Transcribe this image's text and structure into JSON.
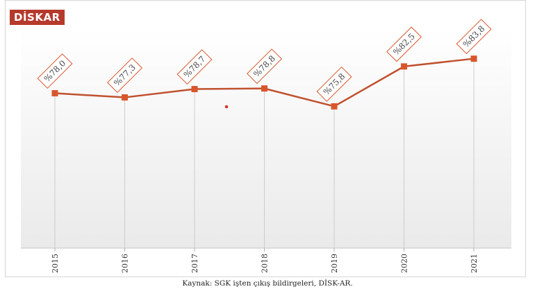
{
  "logo": {
    "text": "DİSKAR"
  },
  "chart_data": {
    "type": "line",
    "categories": [
      "2015",
      "2016",
      "2017",
      "2018",
      "2019",
      "2020",
      "2021"
    ],
    "series": [
      {
        "values": [
          78.0,
          77.3,
          78.7,
          78.8,
          75.8,
          82.5,
          83.8
        ]
      }
    ],
    "data_labels": [
      "%78,0",
      "%77,3",
      "%78,7",
      "%78,8",
      "%75,8",
      "%82,5",
      "%83,8"
    ],
    "ylim": [
      52,
      89
    ],
    "grid": "vertical",
    "colors": {
      "line": "#c0502e",
      "marker": "#d9562c",
      "label_border": "#d9562c",
      "axis": "#cccccc"
    }
  },
  "caption": "Kaynak: SGK işten çıkış bildirgeleri, DİSK-AR."
}
